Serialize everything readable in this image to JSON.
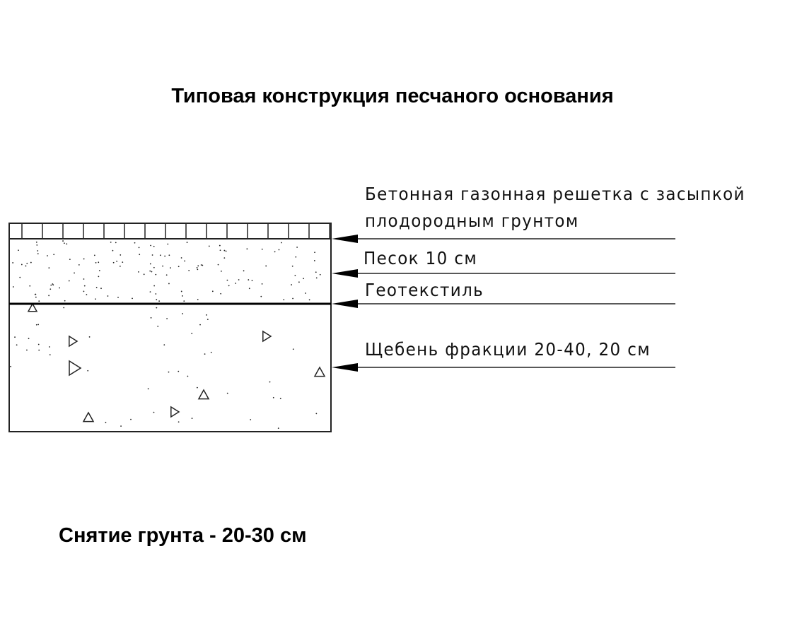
{
  "title": "Типовая конструкция песчаного основания",
  "footer": "Снятие грунта - 20-30 см",
  "layers": [
    {
      "label_lines": [
        "Бетонная газонная решетка с засыпкой",
        "плодородным грунтом"
      ]
    },
    {
      "label_lines": [
        "Песок 10 см"
      ]
    },
    {
      "label_lines": [
        "Геотекстиль"
      ]
    },
    {
      "label_lines": [
        "Щебень фракции 20-40, 20 см"
      ]
    }
  ]
}
